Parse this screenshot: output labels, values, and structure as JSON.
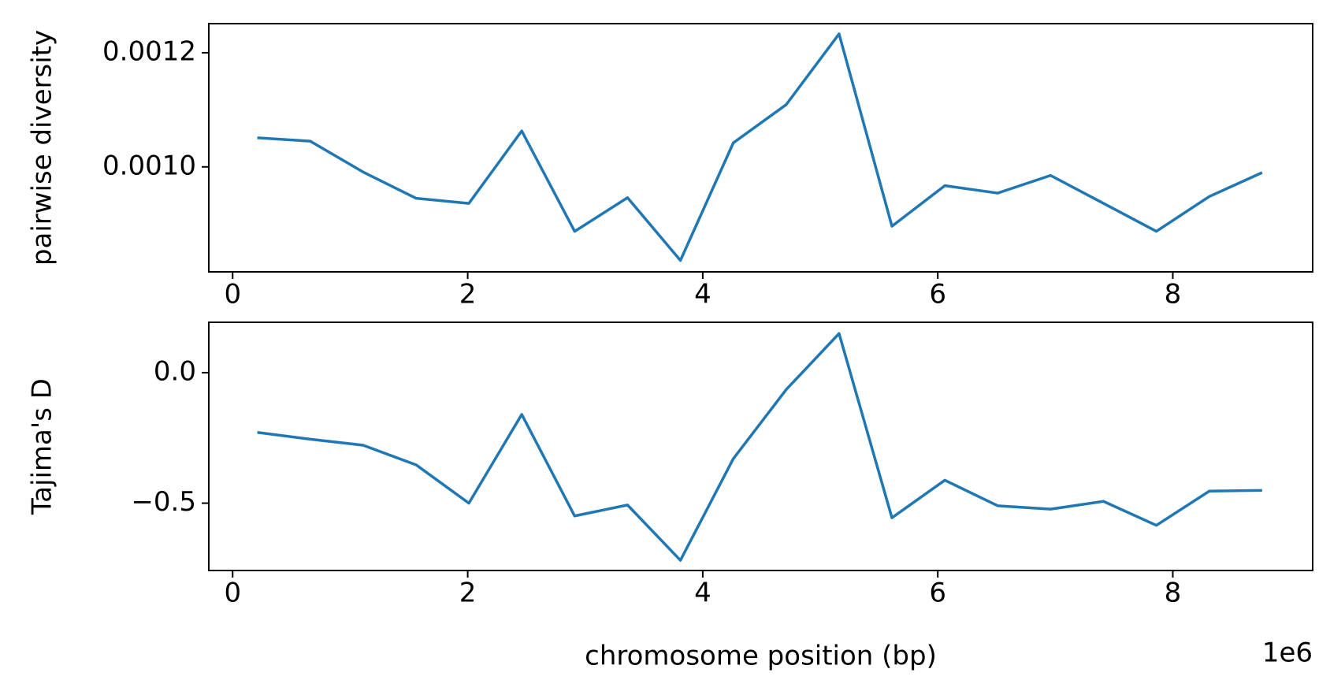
{
  "chart_data": [
    {
      "type": "line",
      "ylabel": "pairwise diversity",
      "x": [
        0.21,
        0.66,
        1.11,
        1.56,
        2.01,
        2.46,
        2.91,
        3.36,
        3.81,
        4.26,
        4.71,
        5.16,
        5.61,
        6.06,
        6.51,
        6.96,
        7.41,
        7.86,
        8.31,
        8.76
      ],
      "series": [
        {
          "color": "#1f77b4",
          "values": [
            0.001051,
            0.001045,
            0.000991,
            0.000945,
            0.000936,
            0.001063,
            0.000887,
            0.000946,
            0.000836,
            0.001042,
            0.001109,
            0.001233,
            0.000896,
            0.000967,
            0.000954,
            0.000985,
            0.000936,
            0.000887,
            0.000948,
            0.00099
          ]
        }
      ],
      "xlim": [
        -0.203,
        9.19
      ],
      "ylim": [
        0.000816,
        0.001251
      ],
      "xticks": [
        0,
        2,
        4,
        6,
        8
      ],
      "yticks": [
        {
          "value": 0.001,
          "label": "0.0010"
        },
        {
          "value": 0.0012,
          "label": "0.0012"
        }
      ]
    },
    {
      "type": "line",
      "ylabel": "Tajima's D",
      "xlabel": "chromosome position (bp)",
      "offset_text": "1e6",
      "x": [
        0.21,
        0.66,
        1.11,
        1.56,
        2.01,
        2.46,
        2.91,
        3.36,
        3.81,
        4.26,
        4.71,
        5.16,
        5.61,
        6.06,
        6.51,
        6.96,
        7.41,
        7.86,
        8.31,
        8.76
      ],
      "series": [
        {
          "color": "#1f77b4",
          "values": [
            -0.229,
            -0.255,
            -0.278,
            -0.353,
            -0.5,
            -0.16,
            -0.549,
            -0.507,
            -0.719,
            -0.33,
            -0.065,
            0.15,
            -0.556,
            -0.412,
            -0.51,
            -0.523,
            -0.493,
            -0.585,
            -0.454,
            -0.451
          ]
        }
      ],
      "xlim": [
        -0.203,
        9.19
      ],
      "ylim": [
        -0.758,
        0.193
      ],
      "xticks": [
        0,
        2,
        4,
        6,
        8
      ],
      "yticks": [
        {
          "value": -0.5,
          "label": "−0.5"
        },
        {
          "value": 0,
          "label": "0.0"
        }
      ]
    }
  ]
}
